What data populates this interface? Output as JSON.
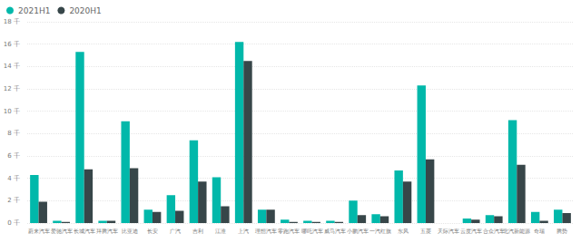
{
  "chart_data": {
    "type": "bar",
    "categories": [
      "蔚来汽车",
      "爱驰汽车",
      "长城汽车",
      "拜腾汽车",
      "比亚迪",
      "长安",
      "广汽",
      "吉利",
      "江淮",
      "上汽",
      "理想汽车",
      "零跑汽车",
      "哪吒汽车",
      "威马汽车",
      "小鹏汽车",
      "一汽红旗",
      "东风",
      "五菱",
      "天际汽车",
      "云度汽车",
      "合众汽车",
      "北汽新能源",
      "奇瑞",
      "腾势"
    ],
    "series": [
      {
        "name": "2021H1",
        "color": "#01b8aa",
        "values": [
          4.3,
          0.2,
          15.3,
          0.2,
          9.1,
          1.2,
          2.5,
          7.4,
          4.1,
          16.2,
          1.2,
          0.3,
          0.2,
          0.2,
          2.0,
          0.8,
          4.7,
          12.3,
          0.0,
          0.4,
          0.7,
          9.2,
          1.0,
          1.2
        ]
      },
      {
        "name": "2020H1",
        "color": "#374649",
        "values": [
          1.9,
          0.1,
          4.8,
          0.2,
          4.9,
          1.0,
          1.1,
          3.7,
          1.5,
          14.5,
          1.2,
          0.1,
          0.1,
          0.1,
          0.7,
          0.6,
          3.7,
          5.7,
          0.0,
          0.3,
          0.6,
          5.2,
          0.2,
          0.9
        ]
      }
    ],
    "ylim": [
      0,
      18
    ],
    "yticks": [
      {
        "value": 0,
        "label": "0 千"
      },
      {
        "value": 2,
        "label": "2 千"
      },
      {
        "value": 4,
        "label": "4 千"
      },
      {
        "value": 6,
        "label": "6 千"
      },
      {
        "value": 8,
        "label": "8 千"
      },
      {
        "value": 10,
        "label": "10 千"
      },
      {
        "value": 12,
        "label": "12 千"
      },
      {
        "value": 14,
        "label": "14 千"
      },
      {
        "value": 16,
        "label": "16 千"
      },
      {
        "value": 18,
        "label": "18 千"
      }
    ],
    "grid": true,
    "legend": "top-left"
  }
}
